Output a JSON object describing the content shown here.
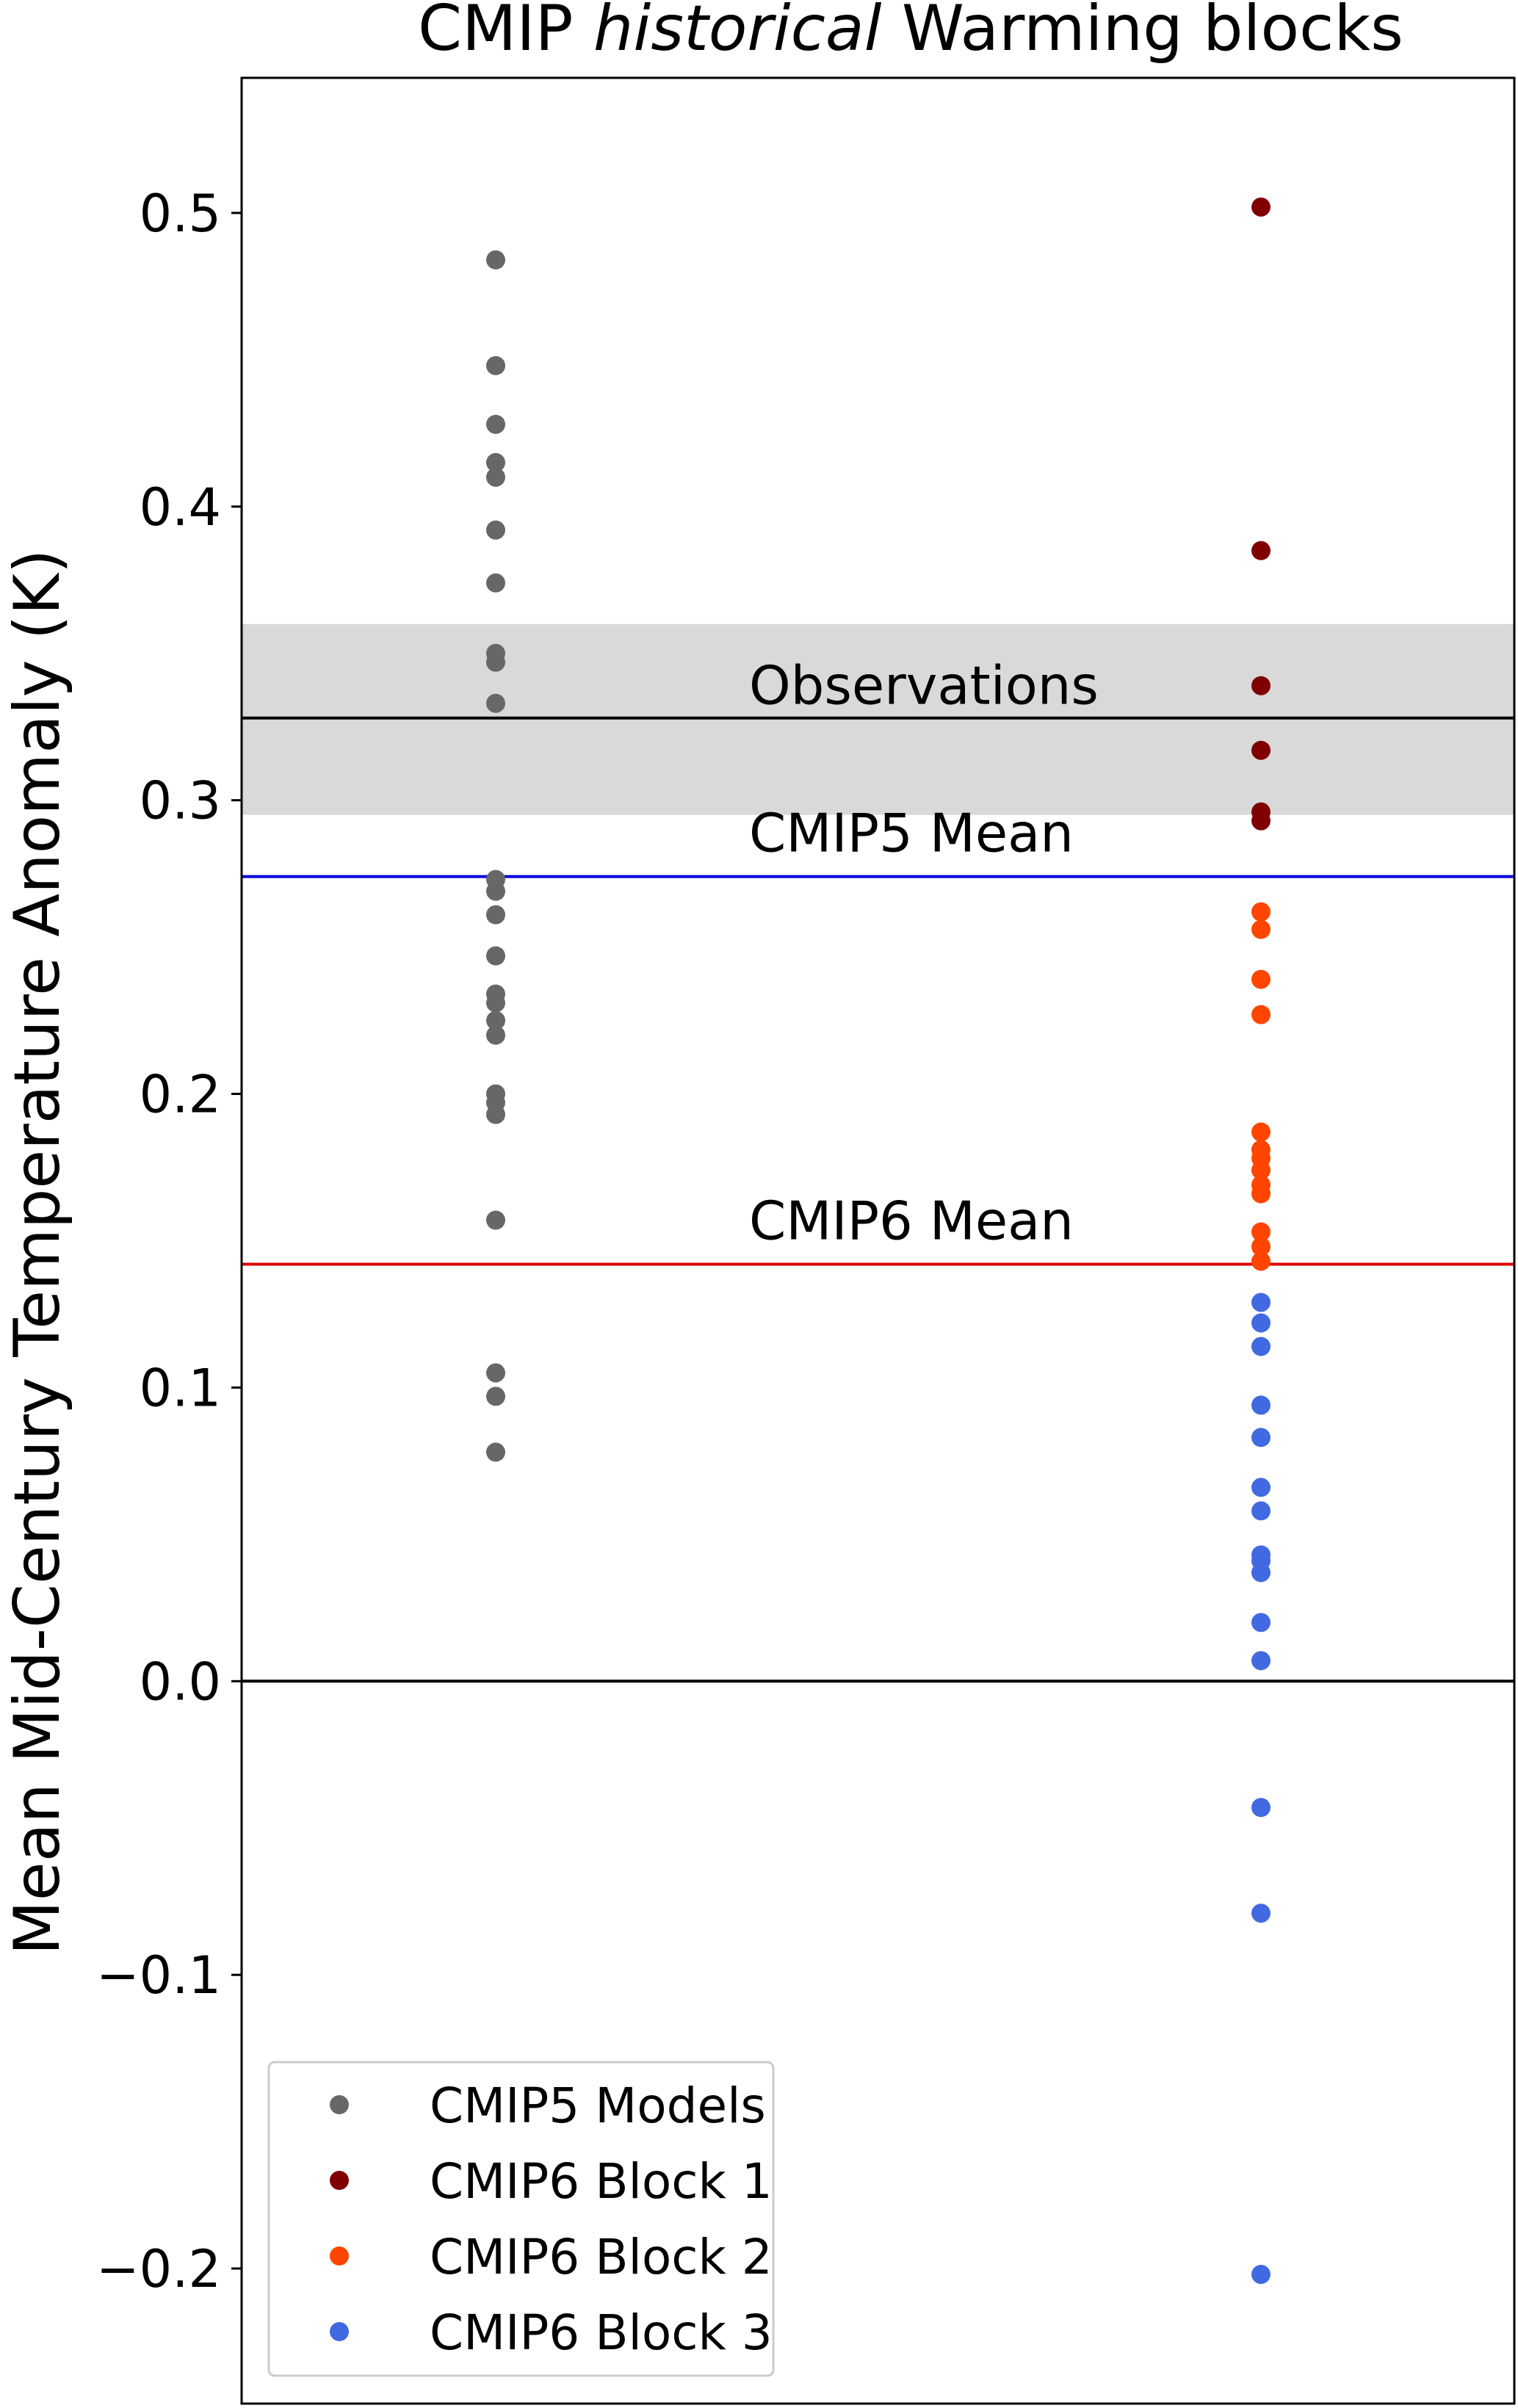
{
  "chart_data": {
    "type": "scatter",
    "title": {
      "prefix": "CMIP ",
      "emphasis": "historical",
      "suffix": " Warming blocks"
    },
    "ylabel": "Mean Mid-Century Temperature Anomaly (K)",
    "xlabel": "",
    "ylim": [
      -0.246,
      0.546
    ],
    "yticks": [
      -0.2,
      -0.1,
      0.0,
      0.1,
      0.2,
      0.3,
      0.4,
      0.5
    ],
    "ytick_labels": [
      "−0.2",
      "−0.1",
      "0.0",
      "0.1",
      "0.2",
      "0.3",
      "0.4",
      "0.5"
    ],
    "grid": false,
    "observations_band": {
      "low": 0.295,
      "high": 0.36,
      "color": "#d9d9d9"
    },
    "reference_lines": [
      {
        "label": "Observations",
        "y": 0.328,
        "color": "#000000"
      },
      {
        "label": "CMIP5 Mean",
        "y": 0.274,
        "color": "#0000dd"
      },
      {
        "label": "CMIP6 Mean",
        "y": 0.142,
        "color": "#dd0000"
      },
      {
        "label": "",
        "y": 0.0,
        "color": "#000000"
      }
    ],
    "legend_position": "bottom-left",
    "series": [
      {
        "name": "CMIP5 Models",
        "color": "#676767",
        "column": 1,
        "values": [
          0.484,
          0.448,
          0.428,
          0.415,
          0.41,
          0.392,
          0.374,
          0.35,
          0.347,
          0.333,
          0.273,
          0.269,
          0.261,
          0.247,
          0.234,
          0.231,
          0.225,
          0.22,
          0.2,
          0.197,
          0.193,
          0.157,
          0.105,
          0.097,
          0.078
        ]
      },
      {
        "name": "CMIP6 Block 1",
        "color": "#800000",
        "column": 2,
        "values": [
          0.502,
          0.385,
          0.339,
          0.317,
          0.296,
          0.293
        ]
      },
      {
        "name": "CMIP6 Block 2",
        "color": "#ff4500",
        "column": 2,
        "values": [
          0.262,
          0.256,
          0.239,
          0.227,
          0.187,
          0.181,
          0.178,
          0.174,
          0.169,
          0.166,
          0.153,
          0.148,
          0.143
        ]
      },
      {
        "name": "CMIP6 Block 3",
        "color": "#4169e1",
        "column": 2,
        "values": [
          0.129,
          0.122,
          0.114,
          0.094,
          0.083,
          0.066,
          0.058,
          0.043,
          0.041,
          0.037,
          0.02,
          0.007,
          -0.043,
          -0.079,
          -0.202
        ]
      }
    ]
  }
}
